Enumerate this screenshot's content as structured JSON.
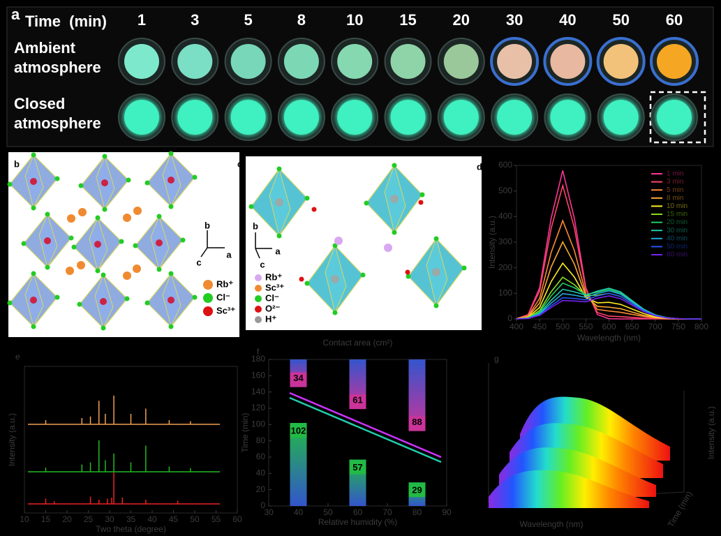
{
  "panel_a": {
    "letter": "a",
    "header": "Time  (min)",
    "times": [
      "1",
      "3",
      "5",
      "8",
      "10",
      "15",
      "20",
      "30",
      "40",
      "50",
      "60"
    ],
    "rows": [
      {
        "label_lines": [
          "Ambient",
          "atmosphere"
        ],
        "colors": [
          "#7ee8cc",
          "#7adfc4",
          "#78d6b9",
          "#7cd8b4",
          "#86d8b0",
          "#8ed4a8",
          "#9ac89a",
          "#e8c0a8",
          "#e8b8a0",
          "#f2c27a",
          "#f5a623"
        ]
      },
      {
        "label_lines": [
          "Closed",
          "atmosphere"
        ],
        "colors": [
          "#3ff0c0",
          "#3ff0c0",
          "#3ff0c0",
          "#3ff0c0",
          "#3ff0c0",
          "#3ff0c0",
          "#3ff0c0",
          "#3ff0c0",
          "#3ff0c0",
          "#3ff0c0",
          "#3ff0c0"
        ]
      }
    ]
  },
  "panel_b": {
    "letter": "b",
    "axes": [
      "b",
      "a",
      "c"
    ],
    "legend": [
      {
        "label": "Rb⁺",
        "color": "#f08a30"
      },
      {
        "label": "Cl⁻",
        "color": "#22cc22"
      },
      {
        "label": "Sc³⁺",
        "color": "#dd1111"
      }
    ]
  },
  "panel_c": {
    "letter": "c",
    "axes": [
      "b",
      "a",
      "c"
    ],
    "legend": [
      {
        "label": "Rb⁺",
        "color": "#d8a8f0"
      },
      {
        "label": "Sc³⁺",
        "color": "#f08a30"
      },
      {
        "label": "Cl⁻",
        "color": "#22cc22"
      },
      {
        "label": "O²⁻",
        "color": "#dd1111"
      },
      {
        "label": "H⁺",
        "color": "#999999"
      }
    ]
  },
  "panel_g": {
    "letter": "g",
    "xlabel": "Wavelength (nm)",
    "ylabel": "Intensity (a.u.)",
    "zlabel": "Time (min)"
  },
  "chart_data": [
    {
      "type": "line",
      "letter": "d",
      "xlabel": "Wavelength (nm)",
      "ylabel": "Intensity (a.u.)",
      "x": [
        400,
        425,
        450,
        475,
        500,
        525,
        550,
        575,
        600,
        625,
        650,
        675,
        700,
        725,
        750,
        775,
        800
      ],
      "xlim": [
        400,
        800
      ],
      "ylim": [
        0,
        600
      ],
      "xticks": [
        400,
        450,
        500,
        550,
        600,
        650,
        700,
        750,
        800
      ],
      "yticks": [
        0,
        100,
        200,
        300,
        400,
        500,
        600
      ],
      "legend": "upper right",
      "series": [
        {
          "name": "1 min",
          "color": "#ff3399",
          "values": [
            1,
            17,
            122,
            394,
            580,
            394,
            122,
            17,
            1,
            0,
            0,
            0,
            0,
            0,
            0,
            0,
            0
          ]
        },
        {
          "name": "3 min",
          "color": "#ff4466",
          "values": [
            1,
            16,
            109,
            354,
            521,
            357,
            115,
            25,
            11,
            9,
            6,
            3,
            1,
            0,
            0,
            0,
            0
          ]
        },
        {
          "name": "5 min",
          "color": "#ff8833",
          "values": [
            1,
            11,
            80,
            260,
            384,
            268,
            98,
            37,
            31,
            26,
            18,
            10,
            4,
            1,
            0,
            0,
            0
          ]
        },
        {
          "name": "8 min",
          "color": "#ffaa33",
          "values": [
            1,
            9,
            62,
            203,
            301,
            215,
            89,
            49,
            46,
            40,
            27,
            14,
            6,
            2,
            0,
            0,
            0
          ]
        },
        {
          "name": "10 min",
          "color": "#ffee22",
          "values": [
            0,
            6,
            45,
            146,
            218,
            164,
            83,
            63,
            65,
            57,
            39,
            21,
            8,
            3,
            1,
            0,
            0
          ]
        },
        {
          "name": "15 min",
          "color": "#88dd22",
          "values": [
            0,
            5,
            33,
            106,
            163,
            134,
            92,
            93,
            100,
            88,
            60,
            32,
            13,
            4,
            1,
            0,
            0
          ]
        },
        {
          "name": "20 min",
          "color": "#22cc66",
          "values": [
            0,
            4,
            27,
            90,
            140,
            122,
            95,
            105,
            115,
            101,
            69,
            37,
            15,
            5,
            1,
            0,
            0
          ]
        },
        {
          "name": "30 min",
          "color": "#22ccaa",
          "values": [
            0,
            3,
            22,
            73,
            116,
            106,
            93,
            109,
            120,
            106,
            72,
            38,
            16,
            5,
            1,
            0,
            0
          ]
        },
        {
          "name": "40 min",
          "color": "#22aadd",
          "values": [
            0,
            3,
            19,
            62,
            99,
            93,
            84,
            100,
            110,
            97,
            66,
            35,
            14,
            4,
            1,
            0,
            0
          ]
        },
        {
          "name": "50 min",
          "color": "#2255ee",
          "values": [
            0,
            2,
            16,
            52,
            83,
            80,
            75,
            90,
            100,
            88,
            60,
            32,
            13,
            4,
            1,
            0,
            0
          ]
        },
        {
          "name": "60 min",
          "color": "#7722ee",
          "values": [
            0,
            2,
            14,
            45,
            72,
            70,
            67,
            81,
            90,
            79,
            54,
            29,
            12,
            4,
            1,
            0,
            0
          ]
        }
      ]
    },
    {
      "type": "spike",
      "letter": "e",
      "xlabel": "Two theta (degree)",
      "ylabel": "Intensity (a.u.)",
      "xlim": [
        10,
        60
      ],
      "xticks": [
        10,
        15,
        20,
        25,
        30,
        35,
        40,
        45,
        50,
        55,
        60
      ],
      "series": [
        {
          "color": "#f0a050",
          "x": [
            15,
            23.5,
            25.5,
            27.5,
            29,
            31,
            35,
            38.5,
            44,
            49
          ],
          "values": [
            8,
            12,
            15,
            45,
            20,
            55,
            20,
            30,
            8,
            6
          ]
        },
        {
          "color": "#22bb22",
          "x": [
            15,
            23.5,
            25.5,
            27.5,
            29,
            31,
            35,
            38.5,
            44,
            49
          ],
          "values": [
            8,
            14,
            18,
            60,
            22,
            35,
            18,
            50,
            10,
            7
          ]
        },
        {
          "color": "#ee2222",
          "x": [
            15,
            17,
            25.5,
            27.5,
            29.5,
            30.5,
            31,
            33,
            38.5,
            46
          ],
          "values": [
            10,
            5,
            14,
            8,
            10,
            12,
            60,
            12,
            8,
            6
          ]
        }
      ]
    },
    {
      "type": "floating_bar",
      "letter": "f",
      "xlabel": "Relative humidity (%)",
      "ylabel": "Time (min)",
      "top_label": "Contact area (cm²)",
      "xlim": [
        30,
        90
      ],
      "xticks": [
        30,
        40,
        50,
        60,
        70,
        80,
        90
      ],
      "ylim": [
        0,
        180
      ],
      "yticks": [
        0,
        20,
        40,
        60,
        80,
        100,
        120,
        140,
        160,
        180
      ],
      "x": [
        40,
        60,
        80
      ],
      "series": [
        {
          "anchor": "bottom",
          "colors": [
            "#22bb44",
            "#3355cc"
          ],
          "values": [
            102,
            57,
            29
          ]
        },
        {
          "anchor": "top",
          "colors": [
            "#cc3399",
            "#3355cc"
          ],
          "values": [
            34,
            61,
            88
          ]
        }
      ]
    }
  ]
}
